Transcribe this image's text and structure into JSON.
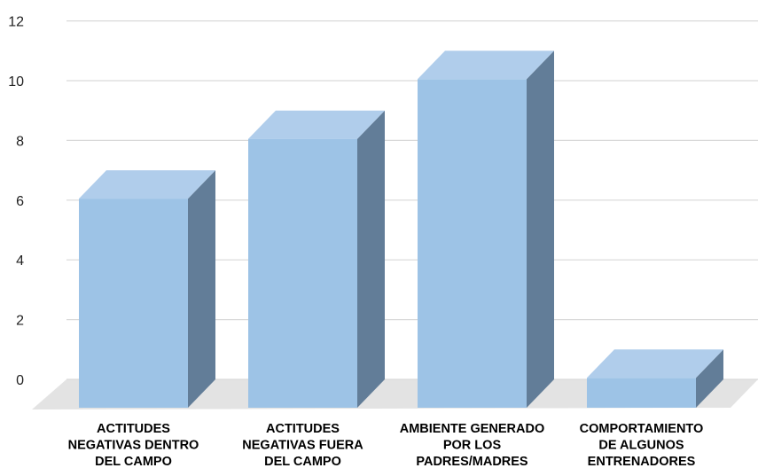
{
  "chart_data": {
    "type": "bar",
    "style": "3d-column",
    "categories": [
      [
        "ACTITUDES",
        "NEGATIVAS DENTRO",
        "DEL CAMPO"
      ],
      [
        "ACTITUDES",
        "NEGATIVAS FUERA",
        "DEL CAMPO"
      ],
      [
        "AMBIENTE GENERADO",
        "POR LOS",
        "PADRES/MADRES"
      ],
      [
        "COMPORTAMIENTO",
        "DE ALGUNOS",
        "ENTRENADORES"
      ]
    ],
    "values": [
      7,
      9,
      11,
      1
    ],
    "title": "",
    "xlabel": "",
    "ylabel": "",
    "ylim": [
      0,
      12
    ],
    "yticks": [
      0,
      2,
      4,
      6,
      8,
      10,
      12
    ],
    "grid": true,
    "legend": "none",
    "colors": {
      "front": "#9dc3e6",
      "top": "#b0cdeb",
      "side": "#627d98",
      "floor": "#e3e3e3"
    }
  }
}
